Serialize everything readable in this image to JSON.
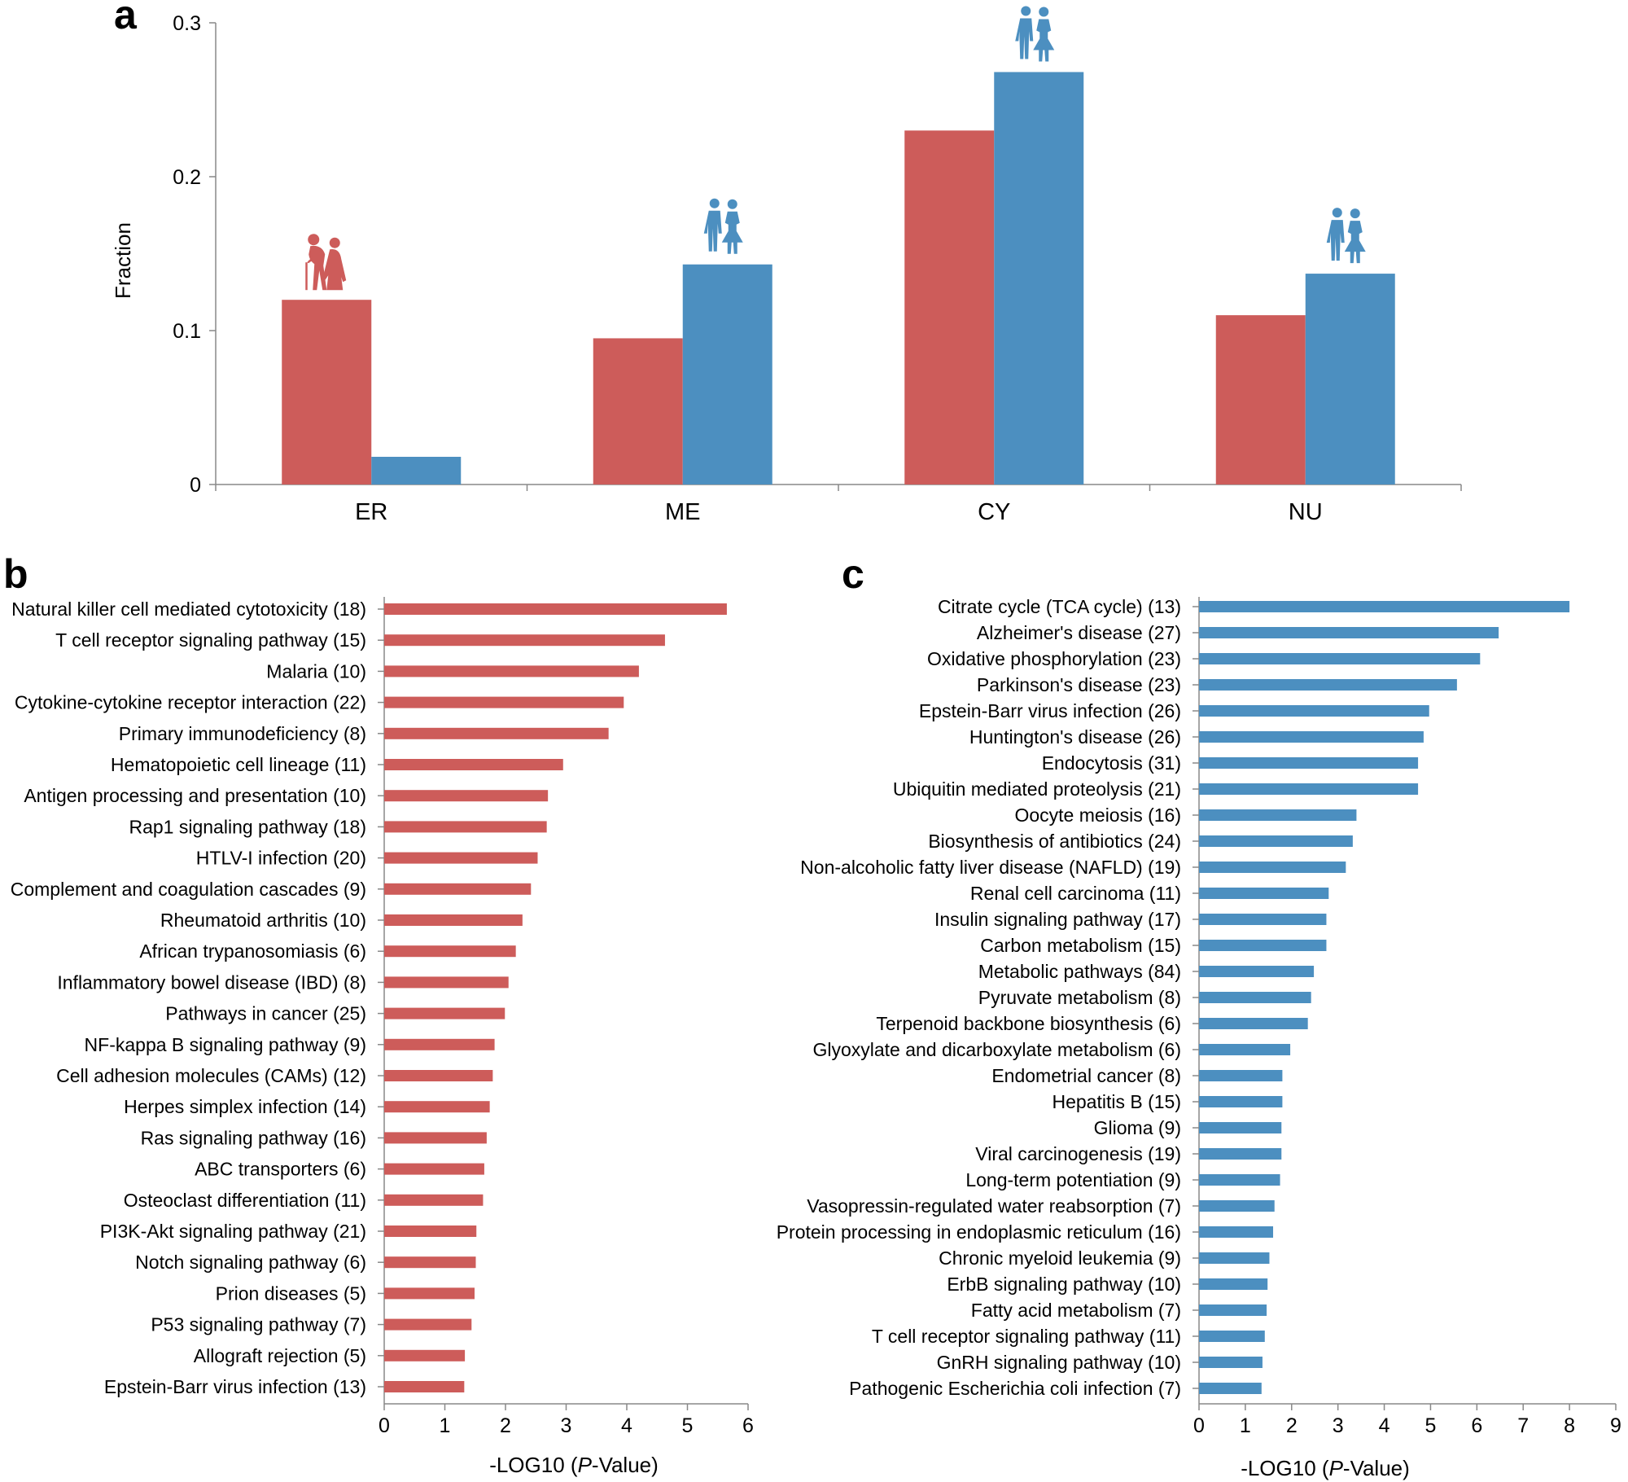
{
  "colors": {
    "red": "#cd5c5a",
    "blue": "#4c8fc0",
    "axis": "#888888"
  },
  "chart_data": [
    {
      "panel": "a",
      "type": "bar",
      "title": "",
      "xlabel": "",
      "ylabel": "Fraction",
      "ylim": [
        0,
        0.3
      ],
      "yticks": [
        "0",
        "0.1",
        "0.2",
        "0.3"
      ],
      "categories": [
        "ER",
        "ME",
        "CY",
        "NU"
      ],
      "series": [
        {
          "name": "old",
          "color": "#cd5c5a",
          "values": [
            0.12,
            0.095,
            0.23,
            0.11
          ]
        },
        {
          "name": "young",
          "color": "#4c8fc0",
          "values": [
            0.018,
            0.143,
            0.268,
            0.137
          ]
        }
      ],
      "icons": [
        "elderly-couple-icon",
        "young-couple-icon",
        "young-couple-icon",
        "young-couple-icon"
      ]
    },
    {
      "panel": "b",
      "type": "bar",
      "orientation": "horizontal",
      "xlabel": "-LOG10 (",
      "xlabel_italic": "P",
      "xlabel_end": "-Value)",
      "xlim": [
        0,
        6
      ],
      "xticks": [
        "0",
        "1",
        "2",
        "3",
        "4",
        "5",
        "6"
      ],
      "categories": [
        "Natural killer cell mediated cytotoxicity (18)",
        "T cell receptor signaling pathway (15)",
        "Malaria (10)",
        "Cytokine-cytokine receptor interaction (22)",
        "Primary immunodeficiency (8)",
        "Hematopoietic cell lineage (11)",
        "Antigen processing and presentation (10)",
        "Rap1 signaling pathway (18)",
        "HTLV-I infection (20)",
        "Complement and coagulation cascades (9)",
        "Rheumatoid arthritis (10)",
        "African trypanosomiasis (6)",
        "Inflammatory bowel disease (IBD) (8)",
        "Pathways in cancer (25)",
        "NF-kappa B signaling pathway (9)",
        "Cell adhesion molecules (CAMs) (12)",
        "Herpes simplex infection (14)",
        "Ras signaling pathway (16)",
        "ABC transporters (6)",
        "Osteoclast differentiation (11)",
        "PI3K-Akt signaling pathway (21)",
        "Notch signaling pathway (6)",
        "Prion diseases (5)",
        "P53 signaling pathway (7)",
        "Allograft rejection (5)",
        "Epstein-Barr virus infection (13)"
      ],
      "values": [
        5.65,
        4.63,
        4.2,
        3.95,
        3.7,
        2.95,
        2.7,
        2.68,
        2.53,
        2.42,
        2.28,
        2.17,
        2.05,
        1.99,
        1.82,
        1.79,
        1.74,
        1.69,
        1.65,
        1.63,
        1.52,
        1.51,
        1.49,
        1.44,
        1.33,
        1.32
      ]
    },
    {
      "panel": "c",
      "type": "bar",
      "orientation": "horizontal",
      "xlabel": "-LOG10 (",
      "xlabel_italic": "P",
      "xlabel_end": "-Value)",
      "xlim": [
        0,
        9
      ],
      "xticks": [
        "0",
        "1",
        "2",
        "3",
        "4",
        "5",
        "6",
        "7",
        "8",
        "9"
      ],
      "categories": [
        "Citrate cycle (TCA cycle) (13)",
        "Alzheimer's disease (27)",
        "Oxidative phosphorylation (23)",
        "Parkinson's disease (23)",
        "Epstein-Barr virus infection (26)",
        "Huntington's disease (26)",
        "Endocytosis (31)",
        "Ubiquitin mediated proteolysis (21)",
        "Oocyte meiosis (16)",
        "Biosynthesis of antibiotics (24)",
        "Non-alcoholic fatty liver disease (NAFLD) (19)",
        "Renal cell carcinoma (11)",
        "Insulin signaling pathway (17)",
        "Carbon metabolism (15)",
        "Metabolic pathways (84)",
        "Pyruvate metabolism (8)",
        "Terpenoid backbone biosynthesis (6)",
        "Glyoxylate and dicarboxylate metabolism (6)",
        "Endometrial cancer (8)",
        "Hepatitis B (15)",
        "Glioma (9)",
        "Viral carcinogenesis (19)",
        "Long-term potentiation (9)",
        "Vasopressin-regulated water reabsorption (7)",
        "Protein processing in endoplasmic reticulum (16)",
        "Chronic myeloid leukemia (9)",
        "ErbB signaling pathway (10)",
        "Fatty acid metabolism (7)",
        "T cell receptor signaling pathway (11)",
        "GnRH signaling pathway (10)",
        "Pathogenic Escherichia coli infection (7)"
      ],
      "values": [
        8.0,
        6.47,
        6.07,
        5.57,
        4.97,
        4.85,
        4.73,
        4.73,
        3.4,
        3.32,
        3.17,
        2.8,
        2.75,
        2.75,
        2.48,
        2.42,
        2.35,
        1.97,
        1.8,
        1.8,
        1.78,
        1.78,
        1.75,
        1.63,
        1.6,
        1.52,
        1.48,
        1.46,
        1.42,
        1.37,
        1.35
      ]
    }
  ]
}
